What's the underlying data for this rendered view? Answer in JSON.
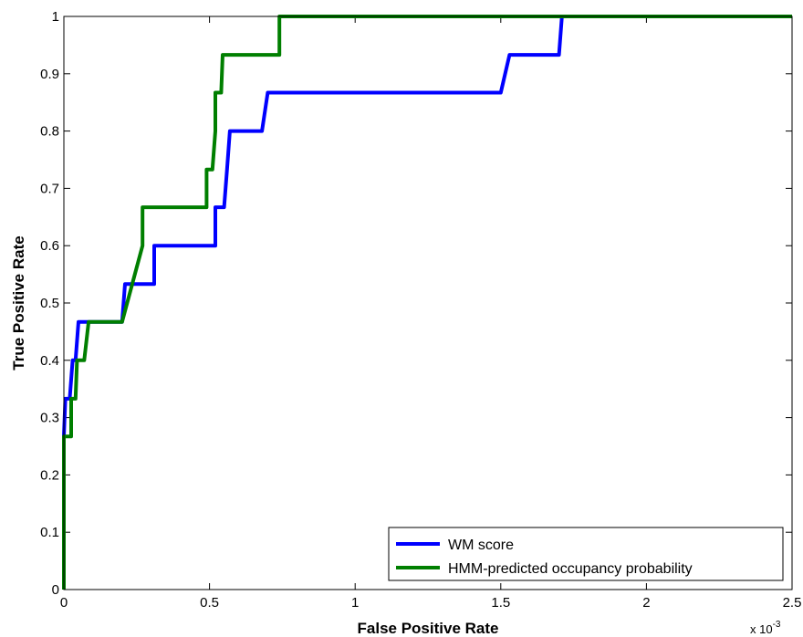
{
  "chart_data": {
    "type": "line",
    "title": "",
    "xlabel": "False Positive Rate",
    "ylabel": "True Positive Rate",
    "x_multiplier_base": "x 10",
    "x_multiplier_exponent": "-3",
    "xlim": [
      0,
      2.5
    ],
    "ylim": [
      0,
      1
    ],
    "xticks": [
      0,
      0.5,
      1,
      1.5,
      2,
      2.5
    ],
    "xtick_labels": [
      "0",
      "0.5",
      "1",
      "1.5",
      "2",
      "2.5"
    ],
    "yticks": [
      0,
      0.1,
      0.2,
      0.3,
      0.4,
      0.5,
      0.6,
      0.7,
      0.8,
      0.9,
      1
    ],
    "ytick_labels": [
      "0",
      "0.1",
      "0.2",
      "0.3",
      "0.4",
      "0.5",
      "0.6",
      "0.7",
      "0.8",
      "0.9",
      "1"
    ],
    "grid": false,
    "legend_position": "bottom-right",
    "series": [
      {
        "name": "WM score",
        "color": "#0000ff",
        "points": [
          [
            0,
            0
          ],
          [
            0,
            0.267
          ],
          [
            0.005,
            0.333
          ],
          [
            0.02,
            0.333
          ],
          [
            0.03,
            0.4
          ],
          [
            0.04,
            0.4
          ],
          [
            0.05,
            0.467
          ],
          [
            0.2,
            0.467
          ],
          [
            0.21,
            0.533
          ],
          [
            0.31,
            0.533
          ],
          [
            0.31,
            0.6
          ],
          [
            0.52,
            0.6
          ],
          [
            0.52,
            0.667
          ],
          [
            0.55,
            0.667
          ],
          [
            0.56,
            0.733
          ],
          [
            0.57,
            0.8
          ],
          [
            0.68,
            0.8
          ],
          [
            0.7,
            0.867
          ],
          [
            1.5,
            0.867
          ],
          [
            1.53,
            0.933
          ],
          [
            1.7,
            0.933
          ],
          [
            1.71,
            1
          ],
          [
            2.5,
            1
          ]
        ]
      },
      {
        "name": "HMM-predicted occupancy probability",
        "color": "#007f00",
        "points": [
          [
            0,
            0
          ],
          [
            0,
            0.267
          ],
          [
            0.025,
            0.267
          ],
          [
            0.025,
            0.333
          ],
          [
            0.04,
            0.333
          ],
          [
            0.045,
            0.4
          ],
          [
            0.07,
            0.4
          ],
          [
            0.085,
            0.467
          ],
          [
            0.2,
            0.467
          ],
          [
            0.27,
            0.6
          ],
          [
            0.27,
            0.667
          ],
          [
            0.49,
            0.667
          ],
          [
            0.49,
            0.733
          ],
          [
            0.51,
            0.733
          ],
          [
            0.52,
            0.8
          ],
          [
            0.52,
            0.867
          ],
          [
            0.54,
            0.867
          ],
          [
            0.545,
            0.933
          ],
          [
            0.74,
            0.933
          ],
          [
            0.74,
            1
          ],
          [
            2.5,
            1
          ]
        ]
      }
    ]
  }
}
